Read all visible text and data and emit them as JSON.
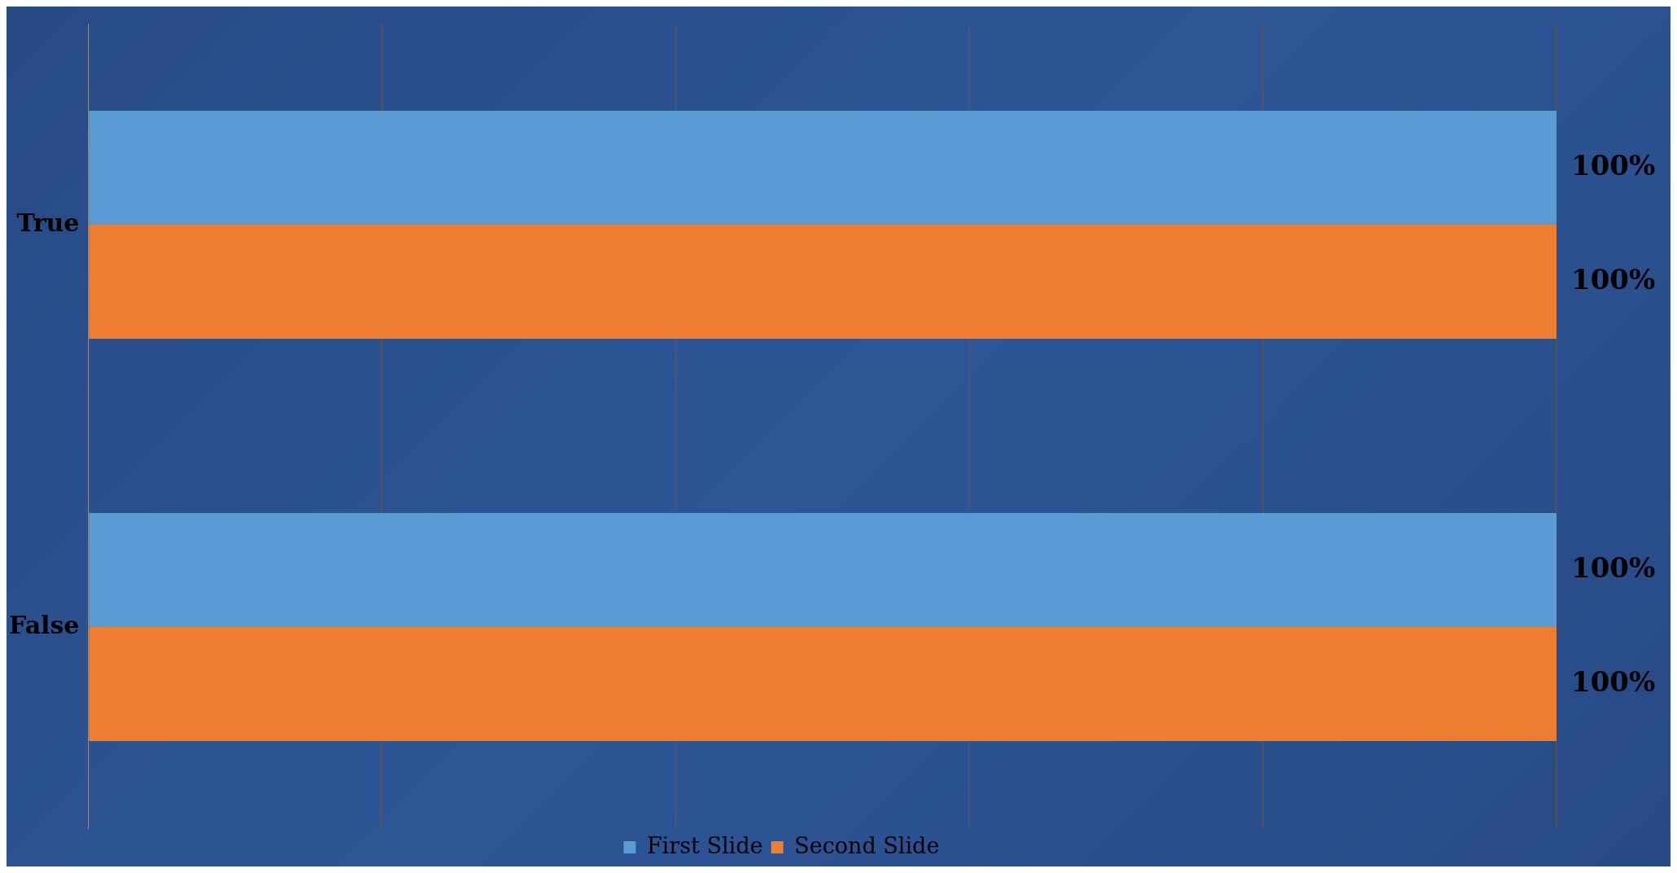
{
  "chart_data": {
    "type": "bar",
    "orientation": "horizontal",
    "categories": [
      "True",
      "False"
    ],
    "series": [
      {
        "name": "First Slide",
        "color": "#5b9bd5",
        "values": [
          100,
          100
        ],
        "value_labels": [
          "100%",
          "100%"
        ]
      },
      {
        "name": "Second Slide",
        "color": "#ed7d31",
        "values": [
          100,
          100
        ],
        "value_labels": [
          "100%",
          "100%"
        ]
      }
    ],
    "xticks": [
      {
        "value": 0,
        "label": null
      },
      {
        "value": 20,
        "label": null
      },
      {
        "value": 40,
        "label": null
      },
      {
        "value": 60,
        "label": null
      },
      {
        "value": 80,
        "label": null
      },
      {
        "value": 100,
        "label": null
      }
    ],
    "grid": "x",
    "legend": "bottom",
    "tick_labels": "y"
  }
}
